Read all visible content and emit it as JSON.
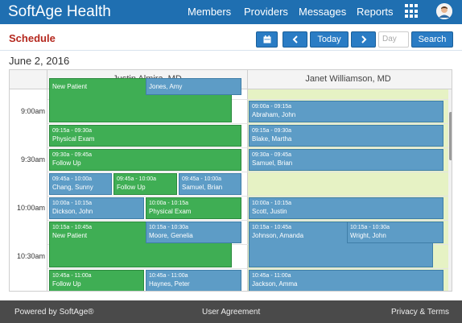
{
  "app": {
    "brand": "SoftAge Health"
  },
  "nav": {
    "members": "Members",
    "providers": "Providers",
    "messages": "Messages",
    "reports": "Reports"
  },
  "page": {
    "title": "Schedule",
    "date": "June 2, 2016"
  },
  "toolbar": {
    "today_label": "Today",
    "day_placeholder": "Day",
    "search_label": "Search"
  },
  "providers": [
    "Justin Almira, MD",
    "Janet Williamson, MD"
  ],
  "time_labels": [
    "9:00am",
    "9:30am",
    "10:00am",
    "10:30am"
  ],
  "appointments": {
    "justin": [
      {
        "time": "",
        "name": "New Patient",
        "color": "green"
      },
      {
        "time": "",
        "name": "Jones, Amy",
        "color": "blue"
      },
      {
        "time": "09:15a - 09:30a",
        "name": "Physical Exam",
        "color": "green"
      },
      {
        "time": "09:30a - 09:45a",
        "name": "Follow Up",
        "color": "green"
      },
      {
        "time": "09:45a - 10:00a",
        "name": "Chang, Sunny",
        "color": "blue"
      },
      {
        "time": "09:45a - 10:00a",
        "name": "Follow Up",
        "color": "green"
      },
      {
        "time": "09:45a - 10:00a",
        "name": "Samuel, Brian",
        "color": "blue"
      },
      {
        "time": "10:00a - 10:15a",
        "name": "Dickson, John",
        "color": "blue"
      },
      {
        "time": "10:00a - 10:15a",
        "name": "Physical Exam",
        "color": "green"
      },
      {
        "time": "10:15a - 10:45a",
        "name": "New Patient",
        "color": "green"
      },
      {
        "time": "10:15a - 10:30a",
        "name": "Moore, Genelia",
        "color": "blue"
      },
      {
        "time": "10:45a - 11:00a",
        "name": "Follow Up",
        "color": "green"
      },
      {
        "time": "10:45a - 11:00a",
        "name": "Haynes, Peter",
        "color": "blue"
      }
    ],
    "janet": [
      {
        "time": "09:00a - 09:15a",
        "name": "Abraham, John",
        "color": "blue"
      },
      {
        "time": "09:15a - 09:30a",
        "name": "Blake, Martha",
        "color": "blue"
      },
      {
        "time": "09:30a - 09:45a",
        "name": "Samuel, Brian",
        "color": "blue"
      },
      {
        "time": "10:00a - 10:15a",
        "name": "Scott, Justin",
        "color": "blue"
      },
      {
        "time": "10:15a - 10:45a",
        "name": "Johnson, Amanda",
        "color": "blue"
      },
      {
        "time": "10:15a - 10:30a",
        "name": "Wright, John",
        "color": "blue"
      },
      {
        "time": "10:45a - 11:00a",
        "name": "Jackson, Amma",
        "color": "blue"
      }
    ]
  },
  "colors": {
    "navbar": "#1f6fb1",
    "title_red": "#b5281e",
    "appt_green": "#3fae54",
    "appt_blue": "#5d9cc6",
    "column_bg": "#e6f2c4"
  },
  "icons": {
    "calendar": "calendar-icon",
    "prev": "chevron-left-icon",
    "next": "chevron-right-icon",
    "apps": "grid-icon",
    "avatar": "user-avatar-icon"
  },
  "footer": {
    "powered": "Powered by SoftAge",
    "agreement": "User Agreement",
    "privacy": "Privacy & Terms"
  }
}
